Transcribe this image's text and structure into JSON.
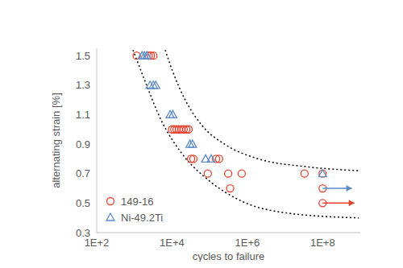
{
  "chart_data": {
    "type": "scatter",
    "x_label": "cycles to failure",
    "y_label": "alternating strain [%]",
    "log": "x",
    "grid": false,
    "legend": "lower left",
    "xlim": [
      100,
      1000000000
    ],
    "xticks": [
      {
        "value": 100,
        "label": "1E+2"
      },
      {
        "value": 10000,
        "label": "1E+4"
      },
      {
        "value": 1000000,
        "label": "1E+6"
      },
      {
        "value": 100000000,
        "label": "1E+8"
      }
    ],
    "ylim": [
      0.3,
      1.55
    ],
    "yticks": [
      0.3,
      0.5,
      0.7,
      0.9,
      1.1,
      1.3,
      1.5
    ],
    "series": [
      {
        "type": "line",
        "line_style": "dotted",
        "color": "#000000",
        "x": [
          6600,
          10700,
          23000,
          61000,
          270000,
          1900000,
          37000000,
          910000000
        ],
        "values": [
          1.538,
          1.385,
          1.194,
          1.03,
          0.894,
          0.801,
          0.747,
          0.72
        ]
      },
      {
        "type": "line",
        "line_style": "dotted",
        "color": "#000000",
        "x": [
          920,
          1900,
          5200,
          17800,
          100000,
          710000,
          14000000,
          910000000
        ],
        "values": [
          1.538,
          1.33,
          1.06,
          0.84,
          0.649,
          0.513,
          0.43,
          0.4
        ]
      },
      {
        "name": "149-16",
        "type": "scatter",
        "marker": "circle",
        "color": "#e8412c",
        "x": [
          1150,
          2400,
          2750,
          3200,
          10000,
          11500,
          13200,
          15200,
          17800,
          20400,
          24000,
          27500,
          32000,
          37000,
          148000,
          178000,
          89000,
          310000,
          710000,
          33000000,
          100000000,
          350000,
          100000000,
          100000000
        ],
        "values": [
          1.5,
          1.5,
          1.5,
          1.5,
          1.0,
          1.0,
          1.0,
          1.0,
          1.0,
          1.0,
          1.0,
          1.0,
          0.8,
          0.8,
          0.8,
          0.8,
          0.7,
          0.7,
          0.7,
          0.7,
          0.7,
          0.6,
          0.6,
          0.5
        ],
        "runouts": [
          {
            "x": 100000000,
            "x_end": 700000000,
            "y": 0.5
          }
        ]
      },
      {
        "name": "Ni-49.2Ti",
        "type": "scatter",
        "marker": "triangle",
        "color": "#5b8cc8",
        "x": [
          1600,
          1850,
          2150,
          2600,
          3200,
          3700,
          8900,
          10500,
          30000,
          35000,
          78000,
          110000,
          100000000
        ],
        "values": [
          1.5,
          1.5,
          1.5,
          1.3,
          1.3,
          1.3,
          1.1,
          1.1,
          0.9,
          0.9,
          0.8,
          0.8,
          0.7
        ],
        "runouts": [
          {
            "x": 100000000,
            "x_end": 600000000,
            "y": 0.6
          }
        ]
      }
    ]
  }
}
